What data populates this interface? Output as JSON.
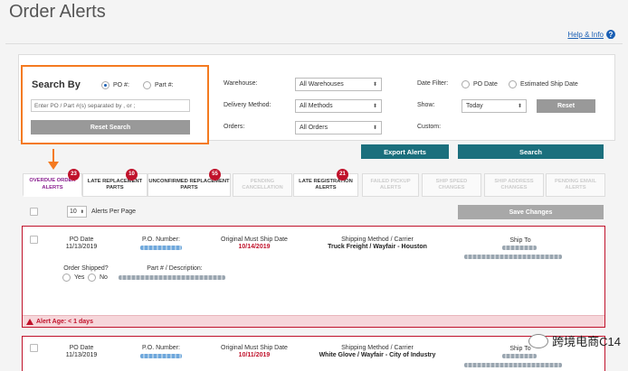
{
  "header": {
    "title": "Order Alerts",
    "help_label": "Help & Info"
  },
  "search": {
    "title": "Search By",
    "option_po": "PO #:",
    "option_part": "Part #:",
    "input_placeholder": "Enter PO / Part #(s) separated by , or ;",
    "reset_label": "Reset Search"
  },
  "filters": {
    "warehouse_label": "Warehouse:",
    "warehouse_value": "All Warehouses",
    "delivery_label": "Delivery Method:",
    "delivery_value": "All Methods",
    "orders_label": "Orders:",
    "orders_value": "All Orders",
    "date_filter_label": "Date Filter:",
    "date_po": "PO Date",
    "date_ship": "Estimated Ship Date",
    "show_label": "Show:",
    "show_value": "Today",
    "reset_label": "Reset",
    "custom_label": "Custom:",
    "export_label": "Export Alerts",
    "search_label": "Search"
  },
  "tabs": [
    {
      "label": "OVERDUE ORDER ALERTS",
      "badge": "23"
    },
    {
      "label": "LATE REPLACEMENT PARTS",
      "badge": "10"
    },
    {
      "label": "UNCONFIRMED REPLACEMENT PARTS",
      "badge": "55"
    },
    {
      "label": "PENDING CANCELLATION",
      "badge": ""
    },
    {
      "label": "LATE REGISTRATION ALERTS",
      "badge": "21"
    },
    {
      "label": "FAILED PICKUP ALERTS",
      "badge": ""
    },
    {
      "label": "SHIP SPEED CHANGES",
      "badge": ""
    },
    {
      "label": "SHIP ADDRESS CHANGES",
      "badge": ""
    },
    {
      "label": "PENDING EMAIL ALERTS",
      "badge": ""
    }
  ],
  "toolbar": {
    "per_page_value": "10",
    "per_page_label": "Alerts Per Page",
    "save_label": "Save Changes"
  },
  "cards": [
    {
      "po_date_label": "PO Date",
      "po_date": "11/13/2019",
      "po_number_label": "P.O. Number:",
      "must_ship_label": "Original Must Ship Date",
      "must_ship": "10/14/2019",
      "method_label": "Shipping Method / Carrier",
      "method": "Truck Freight / Wayfair - Houston",
      "ship_to_label": "Ship To",
      "shipped_label": "Order Shipped?",
      "yes_label": "Yes",
      "no_label": "No",
      "part_label": "Part # / Description:",
      "alert_age": "Alert Age: < 1 days"
    },
    {
      "po_date_label": "PO Date",
      "po_date": "11/13/2019",
      "po_number_label": "P.O. Number:",
      "must_ship_label": "Original Must Ship Date",
      "must_ship": "10/11/2019",
      "method_label": "Shipping Method / Carrier",
      "method": "White Glove / Wayfair - City of Industry",
      "ship_to_label": "Ship To"
    }
  ],
  "watermark": "跨境电商C14",
  "colors": {
    "accent_orange": "#f47a20",
    "teal": "#1b6f7d",
    "alert_red": "#c0122b",
    "active_tab": "#8a2090"
  }
}
